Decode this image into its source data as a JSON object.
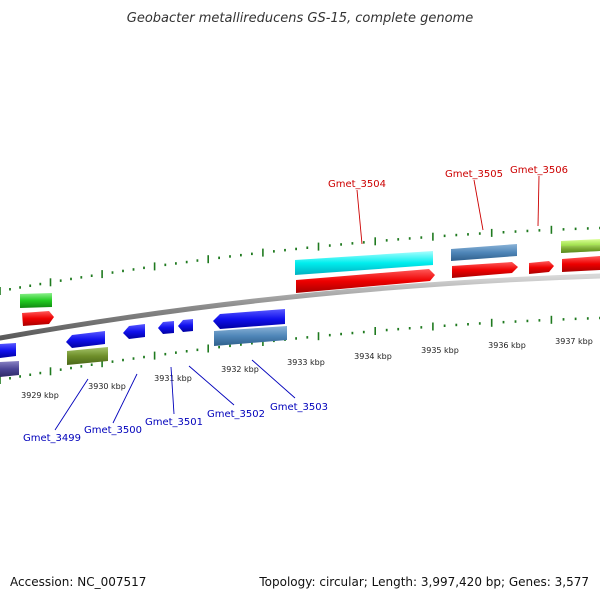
{
  "title": "Geobacter metallireducens GS-15, complete genome",
  "footer": {
    "accession": "Accession: NC_007517",
    "summary": "Topology: circular; Length: 3,997,420 bp; Genes: 3,577"
  },
  "colors": {
    "backbone": "#8a8a8a",
    "tick": "#1f7a1f",
    "top_label": "#cc0000",
    "bottom_label": "#0000bb"
  },
  "kbp_labels": [
    "3929 kbp",
    "3930 kbp",
    "3931 kbp",
    "3932 kbp",
    "3933 kbp",
    "3934 kbp",
    "3935 kbp",
    "3936 kbp",
    "3937 kbp"
  ],
  "genes_top": [
    {
      "id": "Gmet_3504",
      "color": "cyan"
    },
    {
      "id": "Gmet_3505",
      "color": "steelblue"
    },
    {
      "id": "Gmet_3506",
      "color": "red"
    }
  ],
  "genes_bottom": [
    {
      "id": "Gmet_3499",
      "color": "olive"
    },
    {
      "id": "Gmet_3500",
      "color": "blue"
    },
    {
      "id": "Gmet_3501",
      "color": "blue"
    },
    {
      "id": "Gmet_3502",
      "color": "blue"
    },
    {
      "id": "Gmet_3503",
      "color": "steelblue"
    }
  ]
}
